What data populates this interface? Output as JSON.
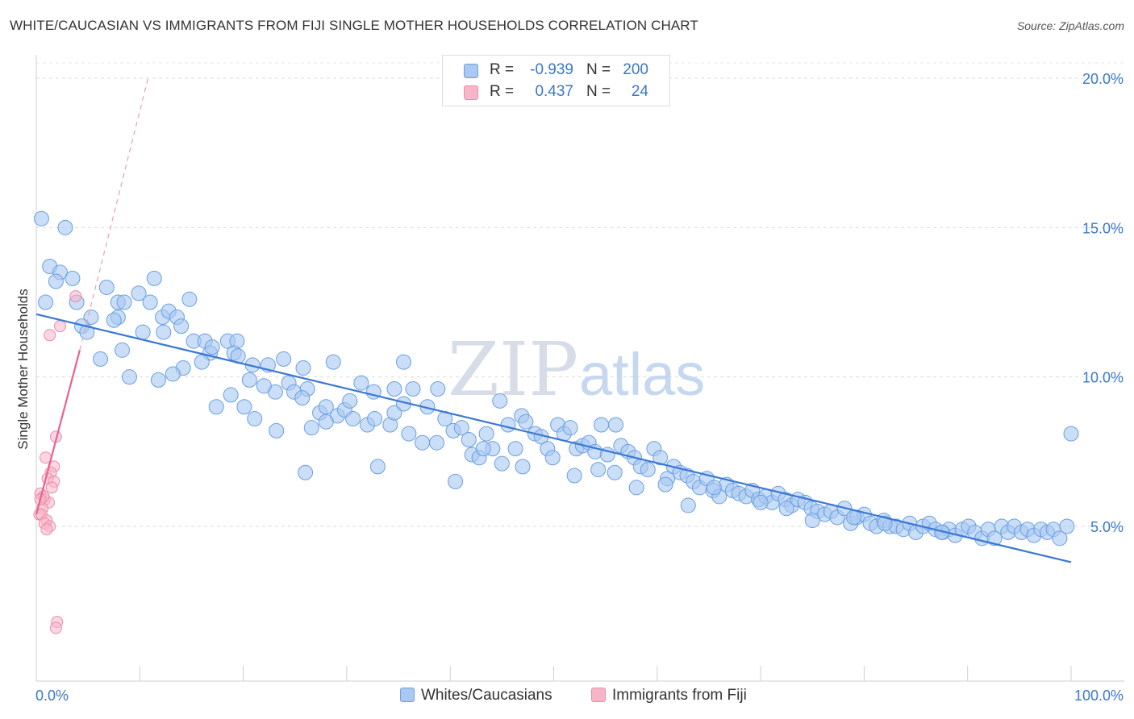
{
  "title": "WHITE/CAUCASIAN VS IMMIGRANTS FROM FIJI SINGLE MOTHER HOUSEHOLDS CORRELATION CHART",
  "source": "Source: ZipAtlas.com",
  "watermark": {
    "zip": "ZIP",
    "atlas": "atlas"
  },
  "legend": {
    "rows": [
      {
        "r_label": "R =",
        "r_value": "-0.939",
        "n_label": "N =",
        "n_value": "200",
        "color": "#a9c8f2",
        "stroke": "#6a9fe0"
      },
      {
        "r_label": "R =",
        "r_value": " 0.437",
        "n_label": "N =",
        "n_value": "24",
        "color": "#f7b6c8",
        "stroke": "#ee8aaa"
      }
    ]
  },
  "bottom_legend": [
    {
      "label": "Whites/Caucasians",
      "color": "#a9c8f2",
      "stroke": "#6a9fe0"
    },
    {
      "label": "Immigrants from Fiji",
      "color": "#f7b6c8",
      "stroke": "#ee8aaa"
    }
  ],
  "chart_data": {
    "type": "scatter",
    "title": "WHITE/CAUCASIAN VS IMMIGRANTS FROM FIJI SINGLE MOTHER HOUSEHOLDS CORRELATION CHART",
    "xlabel": "",
    "ylabel": "Single Mother Households",
    "xlim": [
      0,
      100
    ],
    "ylim": [
      0,
      20.5
    ],
    "x_tick_labels": [
      "0.0%",
      "100.0%"
    ],
    "y_ticks": [
      5,
      10,
      15,
      20
    ],
    "y_tick_labels": [
      "5.0%",
      "10.0%",
      "15.0%",
      "20.0%"
    ],
    "grid": true,
    "series": [
      {
        "name": "Whites/Caucasians",
        "color": "#a9c8f2",
        "stroke": "#6a9fe0",
        "trend": {
          "x0": 0,
          "y0": 12.1,
          "x1": 100,
          "y1": 3.8,
          "color": "#3a78d4"
        },
        "points": [
          [
            0.5,
            15.3
          ],
          [
            2.8,
            15.0
          ],
          [
            1.3,
            13.7
          ],
          [
            2.3,
            13.5
          ],
          [
            3.5,
            13.3
          ],
          [
            1.9,
            13.2
          ],
          [
            0.9,
            12.5
          ],
          [
            3.9,
            12.5
          ],
          [
            5.3,
            12.0
          ],
          [
            4.4,
            11.7
          ],
          [
            7.9,
            12.5
          ],
          [
            6.8,
            13.0
          ],
          [
            9.9,
            12.8
          ],
          [
            11.0,
            12.5
          ],
          [
            11.4,
            13.3
          ],
          [
            12.2,
            12.0
          ],
          [
            12.8,
            12.2
          ],
          [
            13.6,
            12.0
          ],
          [
            14.8,
            12.6
          ],
          [
            10.3,
            11.5
          ],
          [
            4.9,
            11.5
          ],
          [
            7.9,
            12.0
          ],
          [
            12.3,
            11.5
          ],
          [
            15.2,
            11.2
          ],
          [
            16.3,
            11.2
          ],
          [
            18.5,
            11.2
          ],
          [
            19.4,
            11.2
          ],
          [
            16.8,
            10.8
          ],
          [
            19.1,
            10.8
          ],
          [
            8.3,
            10.9
          ],
          [
            6.2,
            10.6
          ],
          [
            16.0,
            10.5
          ],
          [
            14.2,
            10.3
          ],
          [
            20.9,
            10.4
          ],
          [
            22.4,
            10.4
          ],
          [
            23.9,
            10.6
          ],
          [
            25.8,
            10.3
          ],
          [
            28.7,
            10.5
          ],
          [
            35.5,
            10.5
          ],
          [
            9.0,
            10.0
          ],
          [
            11.8,
            9.9
          ],
          [
            13.2,
            10.1
          ],
          [
            20.6,
            9.9
          ],
          [
            24.4,
            9.8
          ],
          [
            26.2,
            9.6
          ],
          [
            23.1,
            9.5
          ],
          [
            24.9,
            9.5
          ],
          [
            18.8,
            9.4
          ],
          [
            25.7,
            9.3
          ],
          [
            31.4,
            9.8
          ],
          [
            32.6,
            9.5
          ],
          [
            34.6,
            9.6
          ],
          [
            36.4,
            9.6
          ],
          [
            38.8,
            9.6
          ],
          [
            17.4,
            9.0
          ],
          [
            20.1,
            9.0
          ],
          [
            21.1,
            8.6
          ],
          [
            23.2,
            8.2
          ],
          [
            26.6,
            8.3
          ],
          [
            27.4,
            8.8
          ],
          [
            28.0,
            9.0
          ],
          [
            29.1,
            8.7
          ],
          [
            29.8,
            8.9
          ],
          [
            30.3,
            9.2
          ],
          [
            30.6,
            8.6
          ],
          [
            32.0,
            8.4
          ],
          [
            32.7,
            8.6
          ],
          [
            34.2,
            8.4
          ],
          [
            34.6,
            8.8
          ],
          [
            35.5,
            9.1
          ],
          [
            37.8,
            9.0
          ],
          [
            37.3,
            7.8
          ],
          [
            38.7,
            7.8
          ],
          [
            39.5,
            8.6
          ],
          [
            40.3,
            8.2
          ],
          [
            41.1,
            8.3
          ],
          [
            41.8,
            7.9
          ],
          [
            42.1,
            7.4
          ],
          [
            42.8,
            7.3
          ],
          [
            43.5,
            8.1
          ],
          [
            44.1,
            7.6
          ],
          [
            44.8,
            9.2
          ],
          [
            45.6,
            8.4
          ],
          [
            46.3,
            7.6
          ],
          [
            46.9,
            8.7
          ],
          [
            47.3,
            8.5
          ],
          [
            48.2,
            8.1
          ],
          [
            48.8,
            8.0
          ],
          [
            49.4,
            7.6
          ],
          [
            49.9,
            7.3
          ],
          [
            50.4,
            8.4
          ],
          [
            51.0,
            8.1
          ],
          [
            51.6,
            8.3
          ],
          [
            52.2,
            7.6
          ],
          [
            52.8,
            7.7
          ],
          [
            53.4,
            7.8
          ],
          [
            54.0,
            7.5
          ],
          [
            54.6,
            8.4
          ],
          [
            55.2,
            7.4
          ],
          [
            55.9,
            6.8
          ],
          [
            56.5,
            7.7
          ],
          [
            57.2,
            7.5
          ],
          [
            57.8,
            7.3
          ],
          [
            58.4,
            7.0
          ],
          [
            59.1,
            6.9
          ],
          [
            59.7,
            7.6
          ],
          [
            60.3,
            7.3
          ],
          [
            61.0,
            6.6
          ],
          [
            61.6,
            7.0
          ],
          [
            62.2,
            6.8
          ],
          [
            62.9,
            6.7
          ],
          [
            63.5,
            6.5
          ],
          [
            64.1,
            6.3
          ],
          [
            64.8,
            6.6
          ],
          [
            65.4,
            6.2
          ],
          [
            66.0,
            6.0
          ],
          [
            66.7,
            6.4
          ],
          [
            67.3,
            6.2
          ],
          [
            67.9,
            6.1
          ],
          [
            68.6,
            6.0
          ],
          [
            69.2,
            6.2
          ],
          [
            69.8,
            5.9
          ],
          [
            70.5,
            6.0
          ],
          [
            71.1,
            5.8
          ],
          [
            71.7,
            6.1
          ],
          [
            72.4,
            5.9
          ],
          [
            73.0,
            5.7
          ],
          [
            73.6,
            5.9
          ],
          [
            74.3,
            5.8
          ],
          [
            74.9,
            5.6
          ],
          [
            75.5,
            5.5
          ],
          [
            76.2,
            5.4
          ],
          [
            76.8,
            5.5
          ],
          [
            77.4,
            5.3
          ],
          [
            78.1,
            5.6
          ],
          [
            78.7,
            5.1
          ],
          [
            79.3,
            5.3
          ],
          [
            80.0,
            5.4
          ],
          [
            80.6,
            5.1
          ],
          [
            81.2,
            5.0
          ],
          [
            81.9,
            5.2
          ],
          [
            82.5,
            5.0
          ],
          [
            83.1,
            5.0
          ],
          [
            83.8,
            4.9
          ],
          [
            84.4,
            5.1
          ],
          [
            85.0,
            4.8
          ],
          [
            85.7,
            5.0
          ],
          [
            86.3,
            5.1
          ],
          [
            86.9,
            4.9
          ],
          [
            87.6,
            4.8
          ],
          [
            88.2,
            4.9
          ],
          [
            88.8,
            4.7
          ],
          [
            89.5,
            4.9
          ],
          [
            90.1,
            5.0
          ],
          [
            90.7,
            4.8
          ],
          [
            91.4,
            4.6
          ],
          [
            92.0,
            4.9
          ],
          [
            92.6,
            4.6
          ],
          [
            93.3,
            5.0
          ],
          [
            93.9,
            4.8
          ],
          [
            94.5,
            5.0
          ],
          [
            95.2,
            4.8
          ],
          [
            95.8,
            4.9
          ],
          [
            96.4,
            4.7
          ],
          [
            97.1,
            4.9
          ],
          [
            97.7,
            4.8
          ],
          [
            98.3,
            4.9
          ],
          [
            98.9,
            4.6
          ],
          [
            99.6,
            5.0
          ],
          [
            100.0,
            8.1
          ],
          [
            56.0,
            8.4
          ],
          [
            52.0,
            6.7
          ],
          [
            40.5,
            6.5
          ],
          [
            43.2,
            7.6
          ],
          [
            58.0,
            6.3
          ],
          [
            63.0,
            5.7
          ],
          [
            47.0,
            7.0
          ],
          [
            54.3,
            6.9
          ],
          [
            60.8,
            6.4
          ],
          [
            45.0,
            7.1
          ],
          [
            65.5,
            6.3
          ],
          [
            70.0,
            5.8
          ],
          [
            72.5,
            5.6
          ],
          [
            75.0,
            5.2
          ],
          [
            79.0,
            5.3
          ],
          [
            82.0,
            5.1
          ],
          [
            87.5,
            4.8
          ],
          [
            33.0,
            7.0
          ],
          [
            36.0,
            8.1
          ],
          [
            28.0,
            8.5
          ],
          [
            26.0,
            6.8
          ],
          [
            22.0,
            9.7
          ],
          [
            19.5,
            10.7
          ],
          [
            17.0,
            11.0
          ],
          [
            14.0,
            11.7
          ],
          [
            7.5,
            11.9
          ],
          [
            8.5,
            12.5
          ]
        ]
      },
      {
        "name": "Immigrants from Fiji",
        "color": "#f7b6c8",
        "stroke": "#ee8aaa",
        "trend": {
          "x0": 0,
          "y0": 5.4,
          "x1": 4.2,
          "y1": 10.9,
          "color": "#e8628f"
        },
        "trend_dashed": {
          "x0": 4.2,
          "y0": 10.9,
          "x1": 10.8,
          "y1": 20.0,
          "color": "#e8a0b8"
        },
        "points": [
          [
            3.8,
            12.7
          ],
          [
            2.3,
            11.7
          ],
          [
            1.3,
            11.4
          ],
          [
            1.9,
            8.0
          ],
          [
            0.9,
            7.3
          ],
          [
            1.7,
            7.0
          ],
          [
            1.4,
            6.8
          ],
          [
            1.1,
            6.6
          ],
          [
            1.7,
            6.5
          ],
          [
            0.4,
            6.1
          ],
          [
            0.8,
            5.9
          ],
          [
            1.2,
            5.8
          ],
          [
            0.6,
            5.6
          ],
          [
            0.3,
            5.4
          ],
          [
            0.5,
            5.4
          ],
          [
            1.0,
            5.2
          ],
          [
            0.8,
            5.1
          ],
          [
            1.3,
            5.0
          ],
          [
            2.0,
            1.8
          ],
          [
            1.9,
            1.6
          ],
          [
            0.7,
            6.0
          ],
          [
            1.5,
            6.3
          ],
          [
            0.4,
            5.9
          ],
          [
            1.0,
            4.9
          ]
        ]
      }
    ]
  }
}
